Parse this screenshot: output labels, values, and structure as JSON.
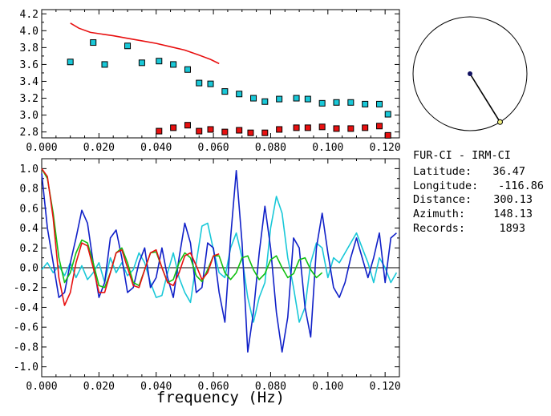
{
  "station": {
    "title": "FUR-CI  -  IRM-CI",
    "rows": [
      {
        "label": "Latitude:",
        "value": "36.47"
      },
      {
        "label": "Longitude:",
        "value": "-116.86"
      },
      {
        "label": "Distance:",
        "value": "300.13"
      },
      {
        "label": "Azimuth:",
        "value": "148.13"
      },
      {
        "label": "Records:",
        "value": "1893"
      }
    ]
  },
  "colors": {
    "red": "#e81010",
    "cyan": "#19c8d8",
    "blue": "#1020c8",
    "green": "#10c010",
    "navy": "#101060",
    "marker_yellow": "#f0f080"
  },
  "chart_data": [
    {
      "type": "scatter",
      "xlim": [
        0.0,
        0.125
      ],
      "ylim": [
        2.73,
        4.25
      ],
      "x_ticks": [
        "0.000",
        "0.020",
        "0.040",
        "0.060",
        "0.080",
        "0.100",
        "0.120"
      ],
      "y_ticks": [
        "2.8",
        "3.0",
        "3.2",
        "3.4",
        "3.6",
        "3.8",
        "4.0",
        "4.2"
      ],
      "curve": {
        "color": "red",
        "x": [
          0.01,
          0.013,
          0.017,
          0.021,
          0.025,
          0.03,
          0.035,
          0.04,
          0.045,
          0.05,
          0.055,
          0.059,
          0.062
        ],
        "y": [
          4.09,
          4.03,
          3.98,
          3.96,
          3.94,
          3.91,
          3.88,
          3.85,
          3.81,
          3.77,
          3.71,
          3.66,
          3.61
        ]
      },
      "series": [
        {
          "color": "cyan",
          "x": [
            0.01,
            0.018,
            0.022,
            0.03,
            0.035,
            0.041,
            0.046,
            0.051,
            0.055,
            0.059,
            0.064,
            0.069,
            0.074,
            0.078,
            0.083,
            0.089,
            0.093,
            0.098,
            0.103,
            0.108,
            0.113,
            0.118,
            0.121
          ],
          "y": [
            3.63,
            3.86,
            3.6,
            3.82,
            3.62,
            3.64,
            3.6,
            3.54,
            3.38,
            3.37,
            3.28,
            3.25,
            3.2,
            3.16,
            3.19,
            3.2,
            3.19,
            3.14,
            3.15,
            3.15,
            3.13,
            3.13,
            3.01
          ]
        },
        {
          "color": "red",
          "x": [
            0.041,
            0.046,
            0.051,
            0.055,
            0.059,
            0.064,
            0.069,
            0.073,
            0.078,
            0.083,
            0.089,
            0.093,
            0.098,
            0.103,
            0.108,
            0.113,
            0.118,
            0.121
          ],
          "y": [
            2.81,
            2.85,
            2.88,
            2.81,
            2.83,
            2.8,
            2.82,
            2.79,
            2.79,
            2.83,
            2.85,
            2.85,
            2.86,
            2.84,
            2.84,
            2.85,
            2.87,
            2.76
          ]
        }
      ]
    },
    {
      "type": "line",
      "xlim": [
        0.0,
        0.125
      ],
      "ylim": [
        -1.1,
        1.1
      ],
      "xlabel": "frequency (Hz)",
      "x_ticks": [
        "0.000",
        "0.020",
        "0.040",
        "0.060",
        "0.080",
        "0.100",
        "0.120"
      ],
      "y_ticks": [
        "1.0",
        "0.8",
        "0.6",
        "0.4",
        "0.2",
        "0.0",
        "-0.2",
        "-0.4",
        "-0.6",
        "-0.8",
        "-1.0"
      ],
      "series": [
        {
          "color": "cyan",
          "x": [
            0.0,
            0.002,
            0.004,
            0.006,
            0.008,
            0.01,
            0.012,
            0.014,
            0.016,
            0.018,
            0.02,
            0.022,
            0.024,
            0.026,
            0.028,
            0.03,
            0.032,
            0.034,
            0.036,
            0.038,
            0.04,
            0.042,
            0.044,
            0.046,
            0.048,
            0.05,
            0.052,
            0.054,
            0.056,
            0.058,
            0.06,
            0.062,
            0.064,
            0.066,
            0.068,
            0.07,
            0.072,
            0.074,
            0.076,
            0.078,
            0.08,
            0.082,
            0.084,
            0.086,
            0.088,
            0.09,
            0.092,
            0.094,
            0.096,
            0.098,
            0.1,
            0.102,
            0.104,
            0.106,
            0.108,
            0.11,
            0.112,
            0.114,
            0.116,
            0.118,
            0.12,
            0.122,
            0.124
          ],
          "y": [
            -0.02,
            0.05,
            -0.05,
            0.02,
            -0.08,
            0.05,
            -0.1,
            0.02,
            -0.12,
            -0.05,
            0.05,
            -0.15,
            0.1,
            -0.05,
            0.05,
            -0.08,
            -0.02,
            0.15,
            0.05,
            -0.15,
            -0.3,
            -0.28,
            -0.05,
            0.15,
            -0.1,
            -0.25,
            -0.35,
            0.05,
            0.42,
            0.45,
            0.18,
            -0.05,
            -0.1,
            0.2,
            0.35,
            0.1,
            -0.3,
            -0.55,
            -0.3,
            -0.15,
            0.4,
            0.72,
            0.55,
            0.1,
            -0.2,
            -0.55,
            -0.4,
            0.05,
            0.25,
            0.2,
            -0.1,
            0.1,
            0.05,
            0.15,
            0.25,
            0.35,
            0.2,
            0.05,
            -0.15,
            0.1,
            0.0,
            -0.15,
            -0.05
          ]
        },
        {
          "color": "blue",
          "x": [
            0.0,
            0.002,
            0.004,
            0.006,
            0.008,
            0.01,
            0.012,
            0.014,
            0.016,
            0.018,
            0.02,
            0.022,
            0.024,
            0.026,
            0.028,
            0.03,
            0.032,
            0.034,
            0.036,
            0.038,
            0.04,
            0.042,
            0.044,
            0.046,
            0.048,
            0.05,
            0.052,
            0.054,
            0.056,
            0.058,
            0.06,
            0.062,
            0.064,
            0.066,
            0.068,
            0.07,
            0.072,
            0.074,
            0.076,
            0.078,
            0.08,
            0.082,
            0.084,
            0.086,
            0.088,
            0.09,
            0.092,
            0.094,
            0.096,
            0.098,
            0.1,
            0.102,
            0.104,
            0.106,
            0.108,
            0.11,
            0.112,
            0.114,
            0.116,
            0.118,
            0.12,
            0.122,
            0.124
          ],
          "y": [
            0.95,
            0.4,
            0.05,
            -0.3,
            -0.25,
            0.05,
            0.3,
            0.58,
            0.45,
            0.05,
            -0.3,
            -0.15,
            0.3,
            0.38,
            0.1,
            -0.25,
            -0.2,
            0.05,
            0.2,
            -0.2,
            -0.1,
            0.2,
            -0.1,
            -0.3,
            0.1,
            0.45,
            0.25,
            -0.25,
            -0.2,
            0.25,
            0.2,
            -0.25,
            -0.55,
            0.3,
            0.98,
            0.25,
            -0.85,
            -0.45,
            0.15,
            0.62,
            0.2,
            -0.45,
            -0.85,
            -0.5,
            0.3,
            0.2,
            -0.4,
            -0.7,
            0.2,
            0.55,
            0.15,
            -0.2,
            -0.3,
            -0.15,
            0.1,
            0.3,
            0.1,
            -0.1,
            0.1,
            0.35,
            -0.15,
            0.3,
            0.35
          ]
        },
        {
          "color": "green",
          "x": [
            0.0,
            0.002,
            0.004,
            0.006,
            0.008,
            0.01,
            0.012,
            0.014,
            0.016,
            0.018,
            0.02,
            0.022,
            0.024,
            0.026,
            0.028,
            0.03,
            0.032,
            0.034,
            0.036,
            0.038,
            0.04,
            0.042,
            0.044,
            0.046,
            0.048,
            0.05,
            0.052,
            0.054,
            0.056,
            0.058,
            0.06,
            0.062,
            0.064,
            0.066,
            0.068,
            0.07,
            0.072,
            0.074,
            0.076,
            0.078,
            0.08,
            0.082,
            0.084,
            0.086,
            0.088,
            0.09,
            0.092,
            0.094,
            0.096,
            0.098
          ],
          "y": [
            1.0,
            0.9,
            0.55,
            0.1,
            -0.15,
            -0.05,
            0.15,
            0.28,
            0.25,
            0.05,
            -0.18,
            -0.2,
            -0.05,
            0.15,
            0.2,
            0.05,
            -0.15,
            -0.18,
            -0.02,
            0.15,
            0.16,
            0.0,
            -0.15,
            -0.12,
            0.05,
            0.15,
            0.1,
            -0.08,
            -0.14,
            -0.02,
            0.12,
            0.12,
            -0.05,
            -0.12,
            -0.05,
            0.1,
            0.12,
            -0.02,
            -0.12,
            -0.06,
            0.08,
            0.12,
            0.0,
            -0.1,
            -0.06,
            0.08,
            0.1,
            -0.02,
            -0.1,
            -0.05
          ]
        },
        {
          "color": "red",
          "x": [
            0.0,
            0.002,
            0.004,
            0.006,
            0.008,
            0.01,
            0.012,
            0.014,
            0.016,
            0.018,
            0.02,
            0.022,
            0.024,
            0.026,
            0.028,
            0.03,
            0.032,
            0.034,
            0.036,
            0.038,
            0.04,
            0.042,
            0.044,
            0.046,
            0.048,
            0.05,
            0.052,
            0.054,
            0.056,
            0.058,
            0.06,
            0.062
          ],
          "y": [
            1.0,
            0.92,
            0.5,
            -0.1,
            -0.38,
            -0.25,
            0.05,
            0.25,
            0.22,
            0.0,
            -0.25,
            -0.25,
            -0.05,
            0.15,
            0.18,
            0.0,
            -0.18,
            -0.2,
            -0.02,
            0.15,
            0.18,
            0.0,
            -0.15,
            -0.18,
            -0.05,
            0.12,
            0.15,
            0.02,
            -0.12,
            -0.05,
            0.12,
            0.14
          ]
        }
      ]
    },
    {
      "type": "other",
      "shape": "azimuth-circle",
      "azimuth_deg": 148.13
    }
  ]
}
